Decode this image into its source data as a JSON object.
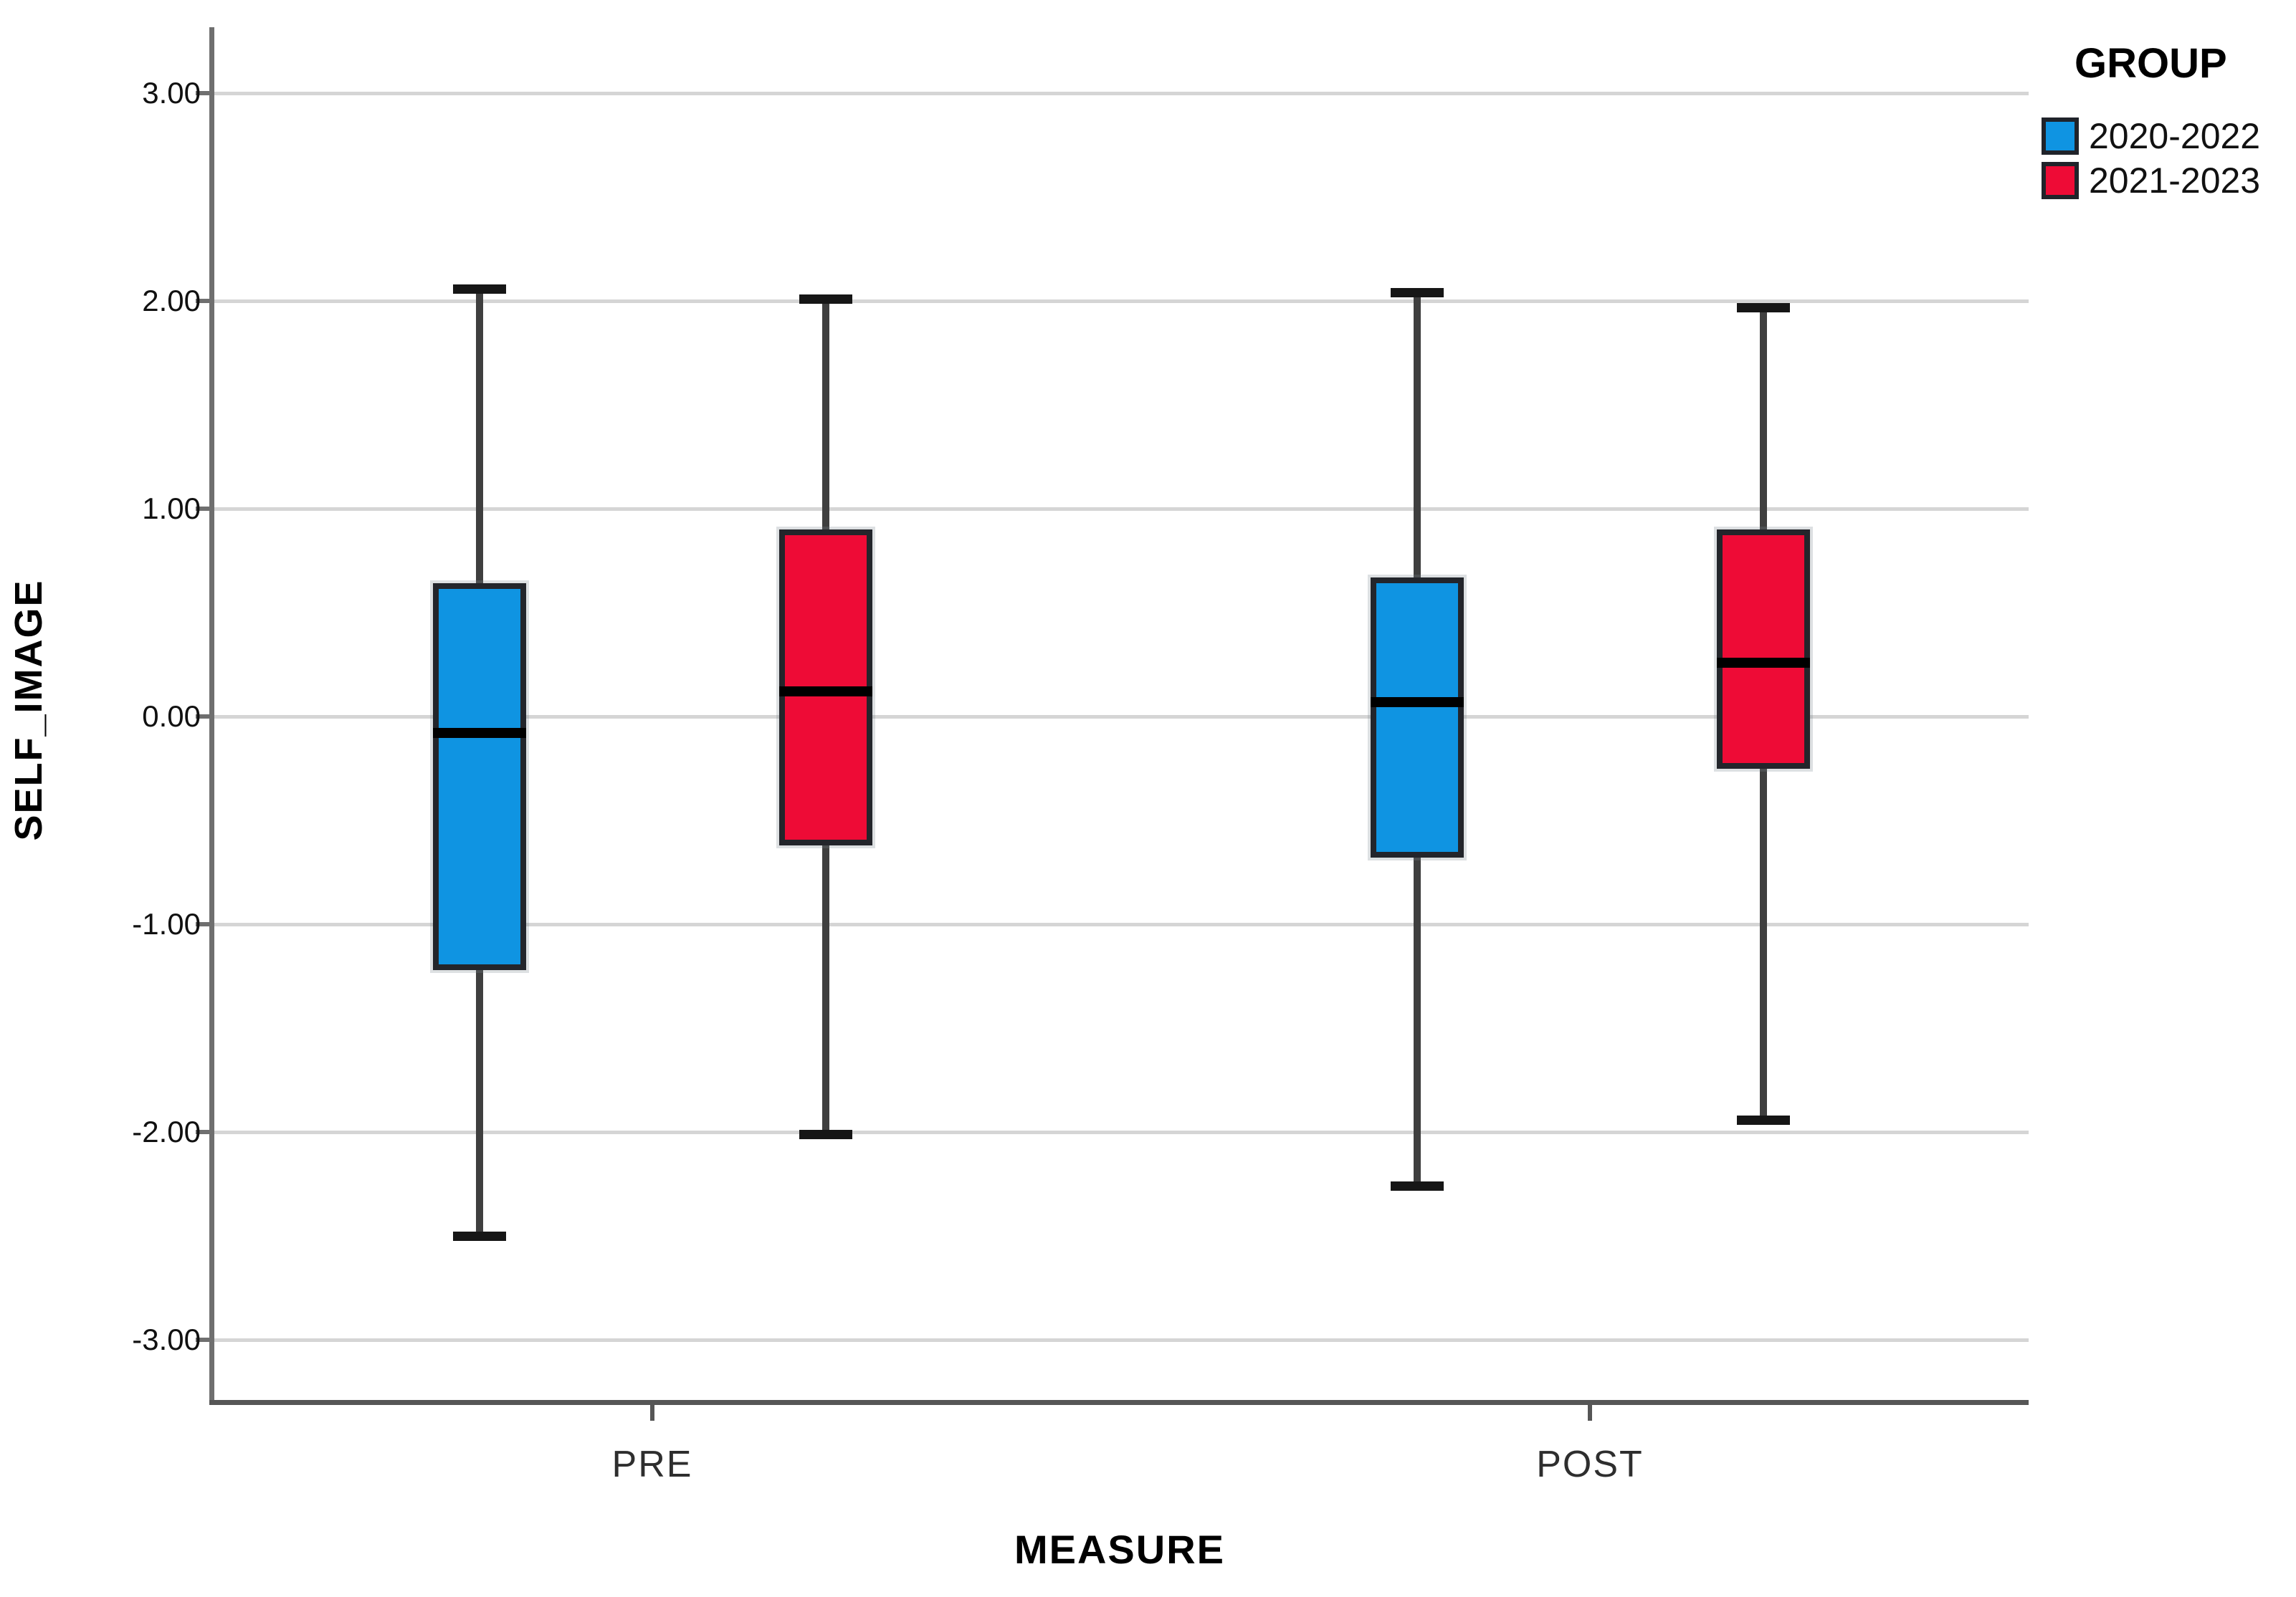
{
  "chart_data": {
    "type": "boxplot",
    "orientation": "vertical",
    "ylabel": "SELF_IMAGE",
    "xlabel": "MEASURE",
    "categories": [
      "PRE",
      "POST"
    ],
    "y_ticks": [
      3.0,
      2.0,
      1.0,
      0.0,
      -1.0,
      -2.0,
      -3.0
    ],
    "y_tick_labels": [
      "3.00",
      "2.00",
      "1.00",
      "0.00",
      "-1.00",
      "-2.00",
      "-3.00"
    ],
    "ylim": [
      -3.35,
      3.35
    ],
    "grid": "horizontal",
    "legend": {
      "title": "GROUP",
      "position": "top-right",
      "entries": [
        {
          "label": "2020-2022",
          "color": "#0f94e2"
        },
        {
          "label": "2021-2023",
          "color": "#ee0b36"
        }
      ]
    },
    "series": [
      {
        "name": "2020-2022",
        "color": "#0f94e2",
        "boxes": [
          {
            "category": "PRE",
            "whisker_low": -2.5,
            "q1": -1.22,
            "median": -0.08,
            "q3": 0.64,
            "whisker_high": 2.06
          },
          {
            "category": "POST",
            "whisker_low": -2.26,
            "q1": -0.68,
            "median": 0.07,
            "q3": 0.67,
            "whisker_high": 2.04
          }
        ]
      },
      {
        "name": "2021-2023",
        "color": "#ee0b36",
        "boxes": [
          {
            "category": "PRE",
            "whisker_low": -2.01,
            "q1": -0.62,
            "median": 0.12,
            "q3": 0.9,
            "whisker_high": 2.01
          },
          {
            "category": "POST",
            "whisker_low": -1.94,
            "q1": -0.25,
            "median": 0.26,
            "q3": 0.9,
            "whisker_high": 1.97
          }
        ]
      }
    ]
  }
}
